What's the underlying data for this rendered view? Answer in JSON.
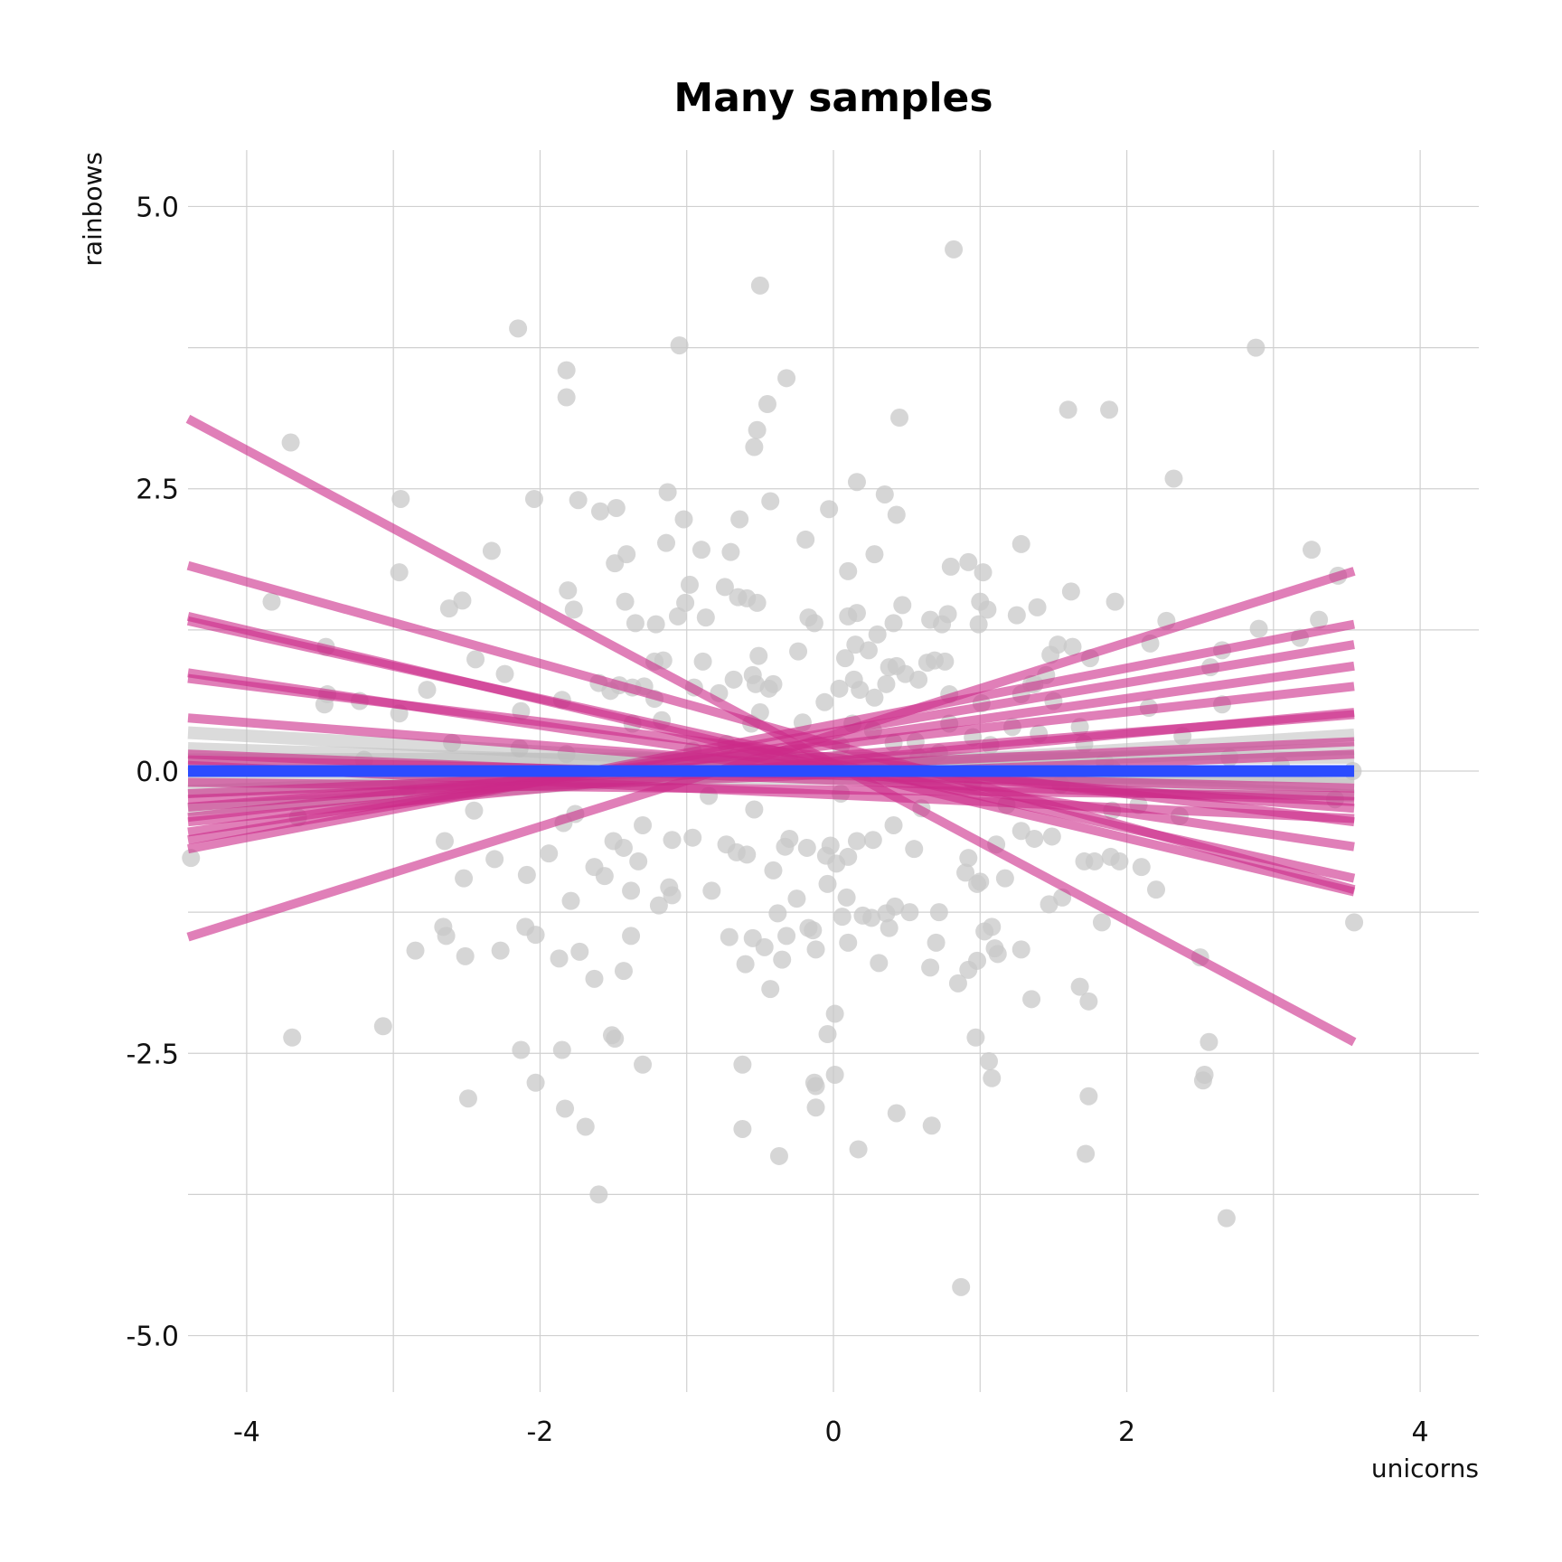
{
  "chart_data": {
    "type": "scatter",
    "title": "Many samples",
    "xlabel": "unicorns",
    "ylabel": "rainbows",
    "xlim": [
      -4.4,
      4.4
    ],
    "ylim": [
      -5.5,
      5.5
    ],
    "x_ticks": [
      "-4",
      "-2",
      "0",
      "2",
      "4"
    ],
    "y_ticks": [
      "5.0",
      "2.5",
      "0.0",
      "-2.5",
      "-5.0"
    ],
    "x_tick_values": [
      -4,
      -2,
      0,
      2,
      4
    ],
    "y_tick_values": [
      5,
      2.5,
      0,
      -2.5,
      -5
    ],
    "grid": true,
    "colors": {
      "points": "#c8c8c8",
      "sample_lines": "#cc2a88",
      "fit_line": "#2b4cff",
      "ribbon": "#bdbdbd",
      "grid": "#d0d0d0"
    },
    "points": [
      [
        0.82,
        4.62
      ],
      [
        -0.5,
        4.3
      ],
      [
        -2.15,
        3.92
      ],
      [
        -1.05,
        3.77
      ],
      [
        2.88,
        3.75
      ],
      [
        -1.82,
        3.55
      ],
      [
        -1.82,
        3.31
      ],
      [
        -0.32,
        3.48
      ],
      [
        -0.45,
        3.25
      ],
      [
        1.6,
        3.2
      ],
      [
        1.88,
        3.2
      ],
      [
        -0.52,
        3.02
      ],
      [
        -0.54,
        2.87
      ],
      [
        0.45,
        3.13
      ],
      [
        -3.7,
        2.91
      ],
      [
        2.32,
        2.59
      ],
      [
        0.16,
        2.56
      ],
      [
        -1.13,
        2.47
      ],
      [
        0.35,
        2.45
      ],
      [
        -0.43,
        2.39
      ],
      [
        -2.95,
        2.41
      ],
      [
        -2.04,
        2.41
      ],
      [
        -1.74,
        2.4
      ],
      [
        -1.59,
        2.3
      ],
      [
        -1.48,
        2.33
      ],
      [
        -0.64,
        2.23
      ],
      [
        -1.02,
        2.23
      ],
      [
        0.43,
        2.27
      ],
      [
        -0.03,
        2.32
      ],
      [
        -1.14,
        2.02
      ],
      [
        -0.19,
        2.05
      ],
      [
        -2.33,
        1.95
      ],
      [
        -0.9,
        1.96
      ],
      [
        -0.7,
        1.94
      ],
      [
        -1.41,
        1.92
      ],
      [
        0.28,
        1.92
      ],
      [
        1.28,
        2.01
      ],
      [
        3.26,
        1.96
      ],
      [
        -1.49,
        1.84
      ],
      [
        -2.96,
        1.76
      ],
      [
        0.1,
        1.77
      ],
      [
        0.92,
        1.85
      ],
      [
        1.02,
        1.76
      ],
      [
        0.8,
        1.81
      ],
      [
        -3.83,
        1.5
      ],
      [
        -1.81,
        1.6
      ],
      [
        -0.98,
        1.65
      ],
      [
        -0.74,
        1.63
      ],
      [
        -0.65,
        1.54
      ],
      [
        1.62,
        1.59
      ],
      [
        1.92,
        1.5
      ],
      [
        3.44,
        1.73
      ],
      [
        -2.53,
        1.51
      ],
      [
        -2.62,
        1.44
      ],
      [
        -1.42,
        1.5
      ],
      [
        -1.77,
        1.43
      ],
      [
        -1.01,
        1.49
      ],
      [
        -0.52,
        1.49
      ],
      [
        -0.59,
        1.53
      ],
      [
        0.47,
        1.47
      ],
      [
        0.16,
        1.4
      ],
      [
        0.1,
        1.37
      ],
      [
        0.78,
        1.39
      ],
      [
        1.0,
        1.5
      ],
      [
        1.05,
        1.43
      ],
      [
        1.25,
        1.38
      ],
      [
        1.39,
        1.45
      ],
      [
        3.31,
        1.34
      ],
      [
        -1.35,
        1.31
      ],
      [
        -1.21,
        1.3
      ],
      [
        -1.06,
        1.37
      ],
      [
        -0.87,
        1.36
      ],
      [
        -0.17,
        1.36
      ],
      [
        -0.13,
        1.31
      ],
      [
        0.3,
        1.21
      ],
      [
        0.41,
        1.31
      ],
      [
        0.66,
        1.34
      ],
      [
        0.74,
        1.3
      ],
      [
        0.99,
        1.3
      ],
      [
        2.27,
        1.33
      ],
      [
        2.9,
        1.26
      ],
      [
        3.18,
        1.18
      ],
      [
        -3.46,
        1.1
      ],
      [
        -0.51,
        1.02
      ],
      [
        -0.24,
        1.06
      ],
      [
        0.08,
        1.0
      ],
      [
        0.15,
        1.12
      ],
      [
        0.24,
        1.07
      ],
      [
        0.43,
        0.93
      ],
      [
        0.64,
        0.96
      ],
      [
        0.76,
        0.97
      ],
      [
        1.53,
        1.12
      ],
      [
        1.63,
        1.1
      ],
      [
        1.75,
        1.0
      ],
      [
        2.16,
        1.13
      ],
      [
        2.65,
        1.07
      ],
      [
        -2.44,
        0.99
      ],
      [
        -1.16,
        0.98
      ],
      [
        -1.22,
        0.97
      ],
      [
        -0.89,
        0.97
      ],
      [
        -0.55,
        0.85
      ],
      [
        0.38,
        0.92
      ],
      [
        0.69,
        0.98
      ],
      [
        1.48,
        1.03
      ],
      [
        2.57,
        0.92
      ],
      [
        -2.24,
        0.86
      ],
      [
        -1.6,
        0.78
      ],
      [
        -1.46,
        0.76
      ],
      [
        -1.37,
        0.74
      ],
      [
        -1.29,
        0.75
      ],
      [
        -0.95,
        0.74
      ],
      [
        -0.68,
        0.81
      ],
      [
        -0.53,
        0.77
      ],
      [
        -0.44,
        0.73
      ],
      [
        -0.41,
        0.77
      ],
      [
        0.04,
        0.73
      ],
      [
        0.14,
        0.81
      ],
      [
        0.36,
        0.77
      ],
      [
        0.49,
        0.86
      ],
      [
        0.58,
        0.81
      ],
      [
        1.35,
        0.77
      ],
      [
        1.37,
        0.77
      ],
      [
        1.45,
        0.85
      ],
      [
        -3.45,
        0.68
      ],
      [
        -2.77,
        0.72
      ],
      [
        -2.13,
        0.53
      ],
      [
        -1.85,
        0.63
      ],
      [
        -1.52,
        0.71
      ],
      [
        -1.22,
        0.64
      ],
      [
        -0.78,
        0.69
      ],
      [
        -0.5,
        0.52
      ],
      [
        -0.06,
        0.61
      ],
      [
        0.18,
        0.72
      ],
      [
        0.28,
        0.65
      ],
      [
        0.79,
        0.68
      ],
      [
        1.01,
        0.6
      ],
      [
        1.28,
        0.68
      ],
      [
        1.5,
        0.62
      ],
      [
        2.15,
        0.56
      ],
      [
        2.65,
        0.59
      ],
      [
        -3.47,
        0.59
      ],
      [
        -3.23,
        0.62
      ],
      [
        -2.96,
        0.51
      ],
      [
        -1.37,
        0.42
      ],
      [
        -1.17,
        0.45
      ],
      [
        -0.56,
        0.42
      ],
      [
        -0.21,
        0.43
      ],
      [
        0.13,
        0.42
      ],
      [
        0.27,
        0.36
      ],
      [
        0.79,
        0.42
      ],
      [
        0.95,
        0.3
      ],
      [
        1.22,
        0.39
      ],
      [
        1.4,
        0.33
      ],
      [
        1.68,
        0.39
      ],
      [
        2.38,
        0.31
      ],
      [
        -2.6,
        0.25
      ],
      [
        -2.14,
        0.2
      ],
      [
        -1.82,
        0.15
      ],
      [
        -0.96,
        0.18
      ],
      [
        -0.73,
        0.24
      ],
      [
        0.05,
        0.22
      ],
      [
        0.41,
        0.25
      ],
      [
        0.56,
        0.26
      ],
      [
        0.72,
        0.16
      ],
      [
        1.07,
        0.23
      ],
      [
        1.71,
        0.24
      ],
      [
        3.54,
        0.0
      ],
      [
        -4.38,
        -0.77
      ],
      [
        -3.65,
        -0.41
      ],
      [
        -2.65,
        -0.62
      ],
      [
        -2.52,
        -0.95
      ],
      [
        -2.31,
        -0.78
      ],
      [
        -2.09,
        -0.92
      ],
      [
        -1.94,
        -0.73
      ],
      [
        -1.84,
        -0.46
      ],
      [
        -1.63,
        -0.85
      ],
      [
        -1.56,
        -0.93
      ],
      [
        -1.5,
        -0.62
      ],
      [
        -1.43,
        -0.68
      ],
      [
        -1.33,
        -0.8
      ],
      [
        -1.3,
        -0.48
      ],
      [
        -1.1,
        -0.61
      ],
      [
        -0.96,
        -0.59
      ],
      [
        -0.73,
        -0.65
      ],
      [
        -0.66,
        -0.72
      ],
      [
        -0.59,
        -0.74
      ],
      [
        -0.54,
        -0.34
      ],
      [
        -0.41,
        -0.88
      ],
      [
        -0.33,
        -0.67
      ],
      [
        -0.3,
        -0.6
      ],
      [
        -0.18,
        -0.68
      ],
      [
        -0.02,
        -0.66
      ],
      [
        0.02,
        -0.82
      ],
      [
        0.1,
        -0.76
      ],
      [
        0.16,
        -0.62
      ],
      [
        0.27,
        -0.61
      ],
      [
        0.41,
        -0.48
      ],
      [
        0.55,
        -0.69
      ],
      [
        0.92,
        -0.77
      ],
      [
        1.11,
        -0.65
      ],
      [
        1.28,
        -0.53
      ],
      [
        1.37,
        -0.6
      ],
      [
        1.49,
        -0.58
      ],
      [
        1.71,
        -0.8
      ],
      [
        1.78,
        -0.8
      ],
      [
        1.89,
        -0.76
      ],
      [
        -2.85,
        -1.59
      ],
      [
        -2.66,
        -1.38
      ],
      [
        -2.64,
        -1.46
      ],
      [
        -2.51,
        -1.64
      ],
      [
        -2.27,
        -1.59
      ],
      [
        -2.1,
        -1.38
      ],
      [
        -2.03,
        -1.45
      ],
      [
        -1.87,
        -1.66
      ],
      [
        -1.79,
        -1.15
      ],
      [
        -1.73,
        -1.6
      ],
      [
        -1.63,
        -1.84
      ],
      [
        -1.43,
        -1.77
      ],
      [
        -1.38,
        -1.46
      ],
      [
        -1.38,
        -1.06
      ],
      [
        -1.19,
        -1.19
      ],
      [
        -1.12,
        -1.03
      ],
      [
        -1.1,
        -1.1
      ],
      [
        -0.83,
        -1.06
      ],
      [
        -0.71,
        -1.47
      ],
      [
        -0.6,
        -1.71
      ],
      [
        -0.55,
        -1.48
      ],
      [
        -0.47,
        -1.56
      ],
      [
        -0.43,
        -1.93
      ],
      [
        -0.38,
        -1.26
      ],
      [
        -0.35,
        -1.67
      ],
      [
        -0.32,
        -1.46
      ],
      [
        -0.25,
        -1.13
      ],
      [
        -0.17,
        -1.39
      ],
      [
        -0.14,
        -1.41
      ],
      [
        -0.12,
        -1.58
      ],
      [
        -0.04,
        -1.0
      ],
      [
        0.06,
        -1.29
      ],
      [
        0.09,
        -1.12
      ],
      [
        0.1,
        -1.52
      ],
      [
        0.2,
        -1.28
      ],
      [
        0.26,
        -1.3
      ],
      [
        0.31,
        -1.7
      ],
      [
        0.36,
        -1.26
      ],
      [
        0.38,
        -1.39
      ],
      [
        0.42,
        -1.2
      ],
      [
        0.52,
        -1.25
      ],
      [
        0.66,
        -1.74
      ],
      [
        0.7,
        -1.52
      ],
      [
        0.72,
        -1.25
      ],
      [
        0.85,
        -1.88
      ],
      [
        0.92,
        -1.76
      ],
      [
        0.98,
        -1.68
      ],
      [
        1.03,
        -1.42
      ],
      [
        1.08,
        -1.38
      ],
      [
        1.1,
        -1.57
      ],
      [
        1.12,
        -1.62
      ],
      [
        1.28,
        -1.58
      ],
      [
        1.35,
        -2.02
      ],
      [
        1.47,
        -1.18
      ],
      [
        1.56,
        -1.12
      ],
      [
        1.68,
        -1.91
      ],
      [
        1.74,
        -2.04
      ],
      [
        1.83,
        -1.34
      ],
      [
        2.2,
        -1.05
      ],
      [
        2.5,
        -1.65
      ],
      [
        -3.69,
        -2.36
      ],
      [
        -3.07,
        -2.26
      ],
      [
        -2.49,
        -2.9
      ],
      [
        -2.13,
        -2.47
      ],
      [
        -2.03,
        -2.76
      ],
      [
        -1.85,
        -2.47
      ],
      [
        -1.83,
        -2.99
      ],
      [
        -1.69,
        -3.15
      ],
      [
        -1.6,
        -3.75
      ],
      [
        -1.51,
        -2.34
      ],
      [
        -1.49,
        -2.37
      ],
      [
        -1.3,
        -2.6
      ],
      [
        -0.62,
        -2.6
      ],
      [
        -0.62,
        -3.17
      ],
      [
        -0.37,
        -3.41
      ],
      [
        -0.13,
        -2.76
      ],
      [
        -0.12,
        -2.98
      ],
      [
        -0.04,
        -2.33
      ],
      [
        0.01,
        -2.15
      ],
      [
        0.01,
        -2.69
      ],
      [
        0.17,
        -3.35
      ],
      [
        0.43,
        -3.03
      ],
      [
        0.67,
        -3.14
      ],
      [
        0.87,
        -4.57
      ],
      [
        0.97,
        -2.36
      ],
      [
        1.06,
        -2.57
      ],
      [
        1.08,
        -2.72
      ],
      [
        1.74,
        -2.88
      ],
      [
        1.72,
        -3.39
      ],
      [
        2.52,
        -2.74
      ],
      [
        2.53,
        -2.69
      ],
      [
        2.56,
        -2.4
      ],
      [
        2.68,
        -3.96
      ],
      [
        -0.12,
        -2.79
      ],
      [
        -1.76,
        -0.38
      ],
      [
        -2.45,
        -0.35
      ],
      [
        -0.85,
        -0.22
      ],
      [
        0.05,
        -0.2
      ],
      [
        0.6,
        -0.33
      ],
      [
        1.18,
        -0.3
      ],
      [
        2.08,
        -0.3
      ],
      [
        2.36,
        -0.4
      ],
      [
        3.42,
        -0.25
      ],
      [
        -3.2,
        0.1
      ],
      [
        -1.05,
        0.05
      ],
      [
        0.65,
        0.1
      ],
      [
        1.85,
        0.08
      ],
      [
        2.7,
        0.12
      ],
      [
        -2.9,
        -0.15
      ],
      [
        -0.3,
        0.1
      ],
      [
        0.95,
        -0.1
      ],
      [
        1.55,
        -0.12
      ],
      [
        3.05,
        0.05
      ],
      [
        1.17,
        -0.95
      ],
      [
        0.58,
        0.12
      ],
      [
        1.9,
        0.02
      ],
      [
        3.55,
        -1.34
      ],
      [
        1.9,
        -0.35
      ],
      [
        2.1,
        -0.85
      ],
      [
        0.9,
        -0.9
      ],
      [
        0.98,
        -1.0
      ],
      [
        1.0,
        -0.98
      ],
      [
        1.95,
        -0.8
      ],
      [
        -0.05,
        -0.75
      ]
    ],
    "sample_lines": [
      [
        -4.4,
        3.12,
        3.55,
        -2.4
      ],
      [
        -4.4,
        1.82,
        3.55,
        -1.05
      ],
      [
        -4.4,
        1.37,
        3.55,
        -1.07
      ],
      [
        -4.4,
        1.33,
        3.55,
        -0.95
      ],
      [
        -4.4,
        0.87,
        3.55,
        -0.67
      ],
      [
        -4.4,
        0.82,
        3.55,
        -0.45
      ],
      [
        -4.4,
        0.47,
        3.55,
        -0.33
      ],
      [
        -4.4,
        0.15,
        3.55,
        -0.27
      ],
      [
        -4.4,
        -1.47,
        3.55,
        1.77
      ],
      [
        -4.4,
        -0.69,
        3.55,
        1.3
      ],
      [
        -4.4,
        -0.61,
        3.55,
        1.12
      ],
      [
        -4.4,
        -0.54,
        3.55,
        0.93
      ],
      [
        -4.4,
        -0.41,
        3.55,
        0.75
      ],
      [
        -4.4,
        -0.45,
        3.55,
        0.52
      ],
      [
        -4.4,
        -0.32,
        3.55,
        0.5
      ],
      [
        -4.4,
        -0.2,
        3.55,
        0.26
      ],
      [
        -4.4,
        0.05,
        3.55,
        -0.42
      ],
      [
        -4.4,
        -0.1,
        3.55,
        -0.22
      ],
      [
        -4.4,
        0.1,
        3.55,
        -0.15
      ],
      [
        -4.4,
        -0.25,
        3.55,
        0.15
      ]
    ],
    "ribbon_lines": [
      [
        -4.4,
        0.34,
        3.55,
        -0.22
      ],
      [
        -4.4,
        -0.34,
        3.55,
        0.32
      ],
      [
        -4.4,
        0.2,
        3.55,
        -0.12
      ],
      [
        -4.4,
        -0.18,
        3.55,
        0.2
      ],
      [
        -4.4,
        0.1,
        3.55,
        0.12
      ],
      [
        -4.4,
        -0.08,
        3.55,
        -0.05
      ]
    ],
    "fit_line": [
      -4.4,
      0.0,
      3.55,
      0.0
    ]
  }
}
